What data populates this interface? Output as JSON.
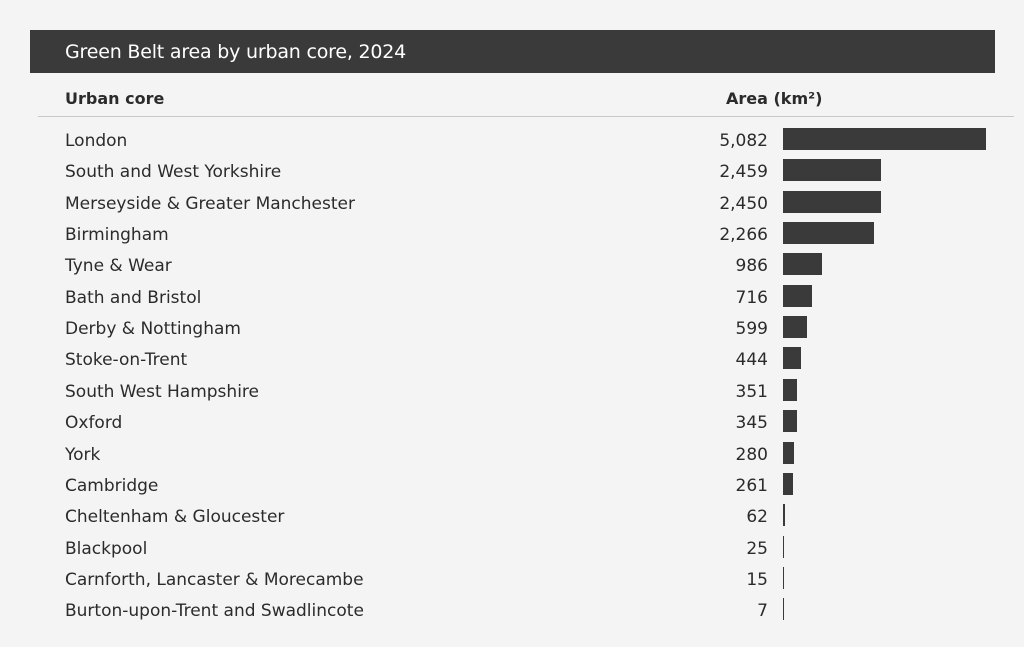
{
  "title": "Green Belt area by urban core, 2024",
  "columns": {
    "label": "Urban core",
    "value": "Area (km²)"
  },
  "colors": {
    "bar": "#3a3a3a",
    "title_bg": "#3a3a3a",
    "background": "#f4f4f4"
  },
  "chart_data": {
    "type": "bar",
    "orientation": "horizontal",
    "title": "Green Belt area by urban core, 2024",
    "xlabel": "Area (km²)",
    "ylabel": "Urban core",
    "grid": false,
    "xlim": [
      0,
      5082
    ],
    "categories": [
      "London",
      "South and West Yorkshire",
      "Merseyside & Greater Manchester",
      "Birmingham",
      "Tyne & Wear",
      "Bath and Bristol",
      "Derby & Nottingham",
      "Stoke-on-Trent",
      "South West Hampshire",
      "Oxford",
      "York",
      "Cambridge",
      "Cheltenham & Gloucester",
      "Blackpool",
      "Carnforth, Lancaster & Morecambe",
      "Burton-upon-Trent and Swadlincote"
    ],
    "values": [
      5082,
      2459,
      2450,
      2266,
      986,
      716,
      599,
      444,
      351,
      345,
      280,
      261,
      62,
      25,
      15,
      7
    ],
    "value_labels": [
      "5,082",
      "2,459",
      "2,450",
      "2,266",
      "986",
      "716",
      "599",
      "444",
      "351",
      "345",
      "280",
      "261",
      "62",
      "25",
      "15",
      "7"
    ]
  }
}
